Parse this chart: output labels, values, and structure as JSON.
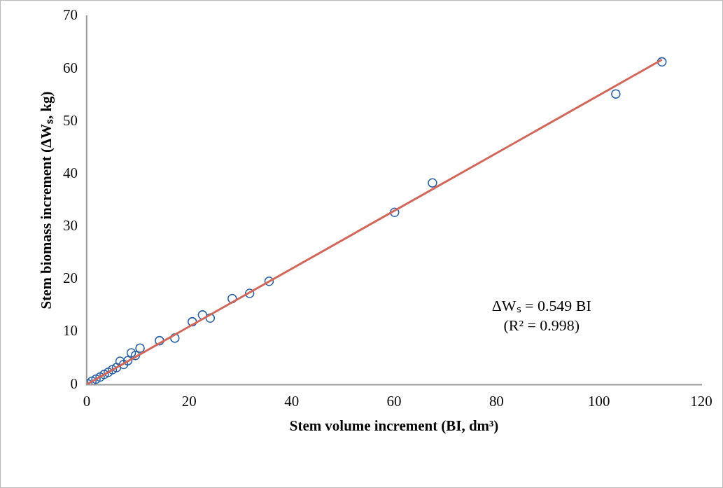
{
  "chart_data": {
    "type": "scatter",
    "xlabel": "Stem volume increment (BI, dm³)",
    "ylabel": "Stem biomass increment (ΔWₛ, kg)",
    "xlim": [
      0,
      120
    ],
    "xticks": [
      0,
      20,
      40,
      60,
      80,
      100,
      120
    ],
    "ylim": [
      0,
      70
    ],
    "yticks": [
      0,
      10,
      20,
      30,
      40,
      50,
      60,
      70
    ],
    "grid": false,
    "legend": false,
    "marker": "circle",
    "annotations": [
      "ΔWₛ = 0.549 BI",
      "(R² = 0.998)"
    ],
    "series": [
      {
        "color": "#2a5f9e",
        "x": [
          0.2,
          1.0,
          1.8,
          2.6,
          3.4,
          4.2,
          5.0,
          5.8,
          6.5,
          7.2,
          8.0,
          8.7,
          9.5,
          10.4,
          14.2,
          17.2,
          20.6,
          22.6,
          24.1,
          28.4,
          31.8,
          35.6,
          60.1,
          67.5,
          103.3,
          112.3
        ],
        "values": [
          0.1,
          0.6,
          1.0,
          1.4,
          1.9,
          2.3,
          2.8,
          3.2,
          4.4,
          3.8,
          4.5,
          6.0,
          5.5,
          6.9,
          8.3,
          8.8,
          11.9,
          13.2,
          12.6,
          16.3,
          17.3,
          19.6,
          32.7,
          38.3,
          55.2,
          61.3
        ]
      },
      {
        "type": "line",
        "color": "#d0675b",
        "marker": "none",
        "x": [
          0,
          112.3
        ],
        "values": [
          0,
          61.7
        ]
      }
    ]
  }
}
